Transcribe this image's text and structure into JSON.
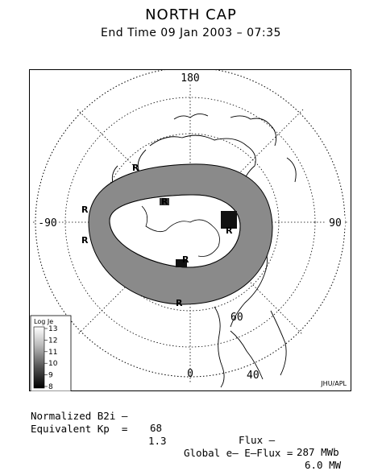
{
  "title": "NORTH CAP",
  "subtitle": "End Time 09 Jan 2003 – 07:35",
  "map": {
    "longitude_labels": {
      "top": "180",
      "left": "-90",
      "right": "90",
      "bottom": "0"
    },
    "latitude_labels": [
      "60",
      "40"
    ],
    "credit": "JHU/APL"
  },
  "colorbar": {
    "title": "Log Je",
    "ticks": [
      "13",
      "12",
      "11",
      "10",
      "9",
      "8"
    ]
  },
  "footer": {
    "normalized_b2i_label": "Normalized B2i –",
    "normalized_b2i_value": "68",
    "flux_label": "Flux –",
    "flux_value": "287 MWb",
    "kp_label": "Equivalent Kp  =",
    "kp_value": "1.3",
    "eflux_label": "Global e– E–Flux =",
    "eflux_value": "6.0 MW"
  }
}
